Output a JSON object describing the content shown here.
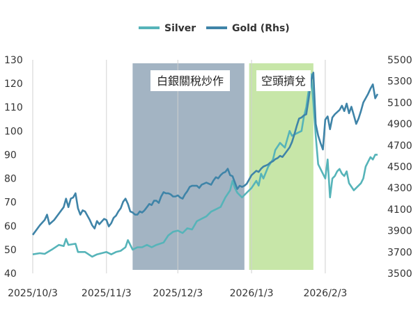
{
  "chart_data": {
    "type": "line",
    "title": "",
    "legend": {
      "position": "top-center",
      "entries": [
        {
          "name": "Silver",
          "color": "#56b4b9",
          "axis": "left"
        },
        {
          "name": "Gold (Rhs)",
          "color": "#3f84a8",
          "axis": "right"
        }
      ]
    },
    "x_ticks": [
      "2025/10/3",
      "2025/11/3",
      "2025/12/3",
      "2026/1/3",
      "2026/2/3"
    ],
    "x_tick_days": [
      0,
      31,
      61,
      92,
      123
    ],
    "x_range_days": [
      0,
      145
    ],
    "y_left": {
      "min": 40,
      "max": 130,
      "ticks": [
        40,
        50,
        60,
        70,
        80,
        90,
        100,
        110,
        120,
        130
      ]
    },
    "y_right": {
      "min": 3500,
      "max": 5500,
      "ticks": [
        3500,
        3700,
        3900,
        4100,
        4300,
        4500,
        4700,
        4900,
        5100,
        5300,
        5500
      ]
    },
    "regions": [
      {
        "label": "白銀關稅炒作",
        "from_day": 42,
        "to_day": 89,
        "color": "#a3b4c3"
      },
      {
        "label": "空頭擠兌",
        "from_day": 91,
        "to_day": 118,
        "color": "#c7e6a8"
      }
    ],
    "series": [
      {
        "name": "Silver",
        "axis": "left",
        "color": "#56b4b9",
        "points": [
          [
            0,
            48
          ],
          [
            3,
            48.5
          ],
          [
            5,
            48.2
          ],
          [
            8,
            50
          ],
          [
            11,
            52
          ],
          [
            13,
            51.5
          ],
          [
            14,
            54.5
          ],
          [
            15,
            52
          ],
          [
            18,
            52.5
          ],
          [
            19,
            49
          ],
          [
            22,
            49
          ],
          [
            25,
            47
          ],
          [
            27,
            48
          ],
          [
            31,
            49
          ],
          [
            33,
            48
          ],
          [
            35,
            49
          ],
          [
            37,
            49.5
          ],
          [
            39,
            51
          ],
          [
            40,
            54
          ],
          [
            41,
            52
          ],
          [
            42,
            50
          ],
          [
            44,
            51
          ],
          [
            46,
            51
          ],
          [
            48,
            52
          ],
          [
            50,
            51
          ],
          [
            52,
            52
          ],
          [
            55,
            53
          ],
          [
            57,
            56
          ],
          [
            59,
            57.5
          ],
          [
            61,
            58
          ],
          [
            63,
            57
          ],
          [
            65,
            59
          ],
          [
            67,
            58.5
          ],
          [
            69,
            62
          ],
          [
            71,
            63
          ],
          [
            73,
            64
          ],
          [
            75,
            66
          ],
          [
            77,
            67
          ],
          [
            79,
            68
          ],
          [
            81,
            72
          ],
          [
            83,
            75
          ],
          [
            84,
            79
          ],
          [
            85,
            76
          ],
          [
            86,
            74
          ],
          [
            87,
            73
          ],
          [
            88,
            72
          ],
          [
            90,
            74
          ],
          [
            92,
            76
          ],
          [
            94,
            79
          ],
          [
            95,
            77
          ],
          [
            96,
            82
          ],
          [
            97,
            80
          ],
          [
            99,
            85
          ],
          [
            101,
            88
          ],
          [
            102,
            92
          ],
          [
            104,
            95
          ],
          [
            105,
            94
          ],
          [
            106,
            93
          ],
          [
            108,
            100
          ],
          [
            109,
            98
          ],
          [
            111,
            99
          ],
          [
            113,
            100
          ],
          [
            114,
            106
          ],
          [
            115,
            110
          ],
          [
            116,
            117
          ],
          [
            117,
            124
          ],
          [
            118,
            112
          ],
          [
            119,
            98
          ],
          [
            120,
            86
          ],
          [
            121,
            84
          ],
          [
            123,
            80
          ],
          [
            124,
            88
          ],
          [
            125,
            72
          ],
          [
            126,
            80
          ],
          [
            127,
            81
          ],
          [
            128,
            83
          ],
          [
            129,
            84
          ],
          [
            130,
            82
          ],
          [
            131,
            81
          ],
          [
            132,
            83
          ],
          [
            133,
            78
          ],
          [
            135,
            75
          ],
          [
            136,
            76
          ],
          [
            137,
            77
          ],
          [
            138,
            78
          ],
          [
            139,
            80
          ],
          [
            140,
            85
          ],
          [
            141,
            87
          ],
          [
            142,
            89
          ],
          [
            143,
            88
          ],
          [
            144,
            90
          ],
          [
            145,
            90
          ]
        ]
      },
      {
        "name": "Gold (Rhs)",
        "axis": "right",
        "color": "#3f84a8",
        "points": [
          [
            0,
            3860
          ],
          [
            3,
            3950
          ],
          [
            5,
            4000
          ],
          [
            6,
            4050
          ],
          [
            7,
            3960
          ],
          [
            9,
            4000
          ],
          [
            11,
            4060
          ],
          [
            13,
            4120
          ],
          [
            14,
            4200
          ],
          [
            15,
            4120
          ],
          [
            16,
            4200
          ],
          [
            17,
            4210
          ],
          [
            18,
            4250
          ],
          [
            19,
            4110
          ],
          [
            20,
            4050
          ],
          [
            21,
            4090
          ],
          [
            22,
            4080
          ],
          [
            24,
            4000
          ],
          [
            25,
            3950
          ],
          [
            26,
            3920
          ],
          [
            27,
            3990
          ],
          [
            28,
            3960
          ],
          [
            30,
            4010
          ],
          [
            31,
            4000
          ],
          [
            32,
            3940
          ],
          [
            33,
            3970
          ],
          [
            34,
            4020
          ],
          [
            35,
            4040
          ],
          [
            36,
            4080
          ],
          [
            37,
            4110
          ],
          [
            38,
            4170
          ],
          [
            39,
            4200
          ],
          [
            40,
            4150
          ],
          [
            41,
            4080
          ],
          [
            42,
            4070
          ],
          [
            43,
            4050
          ],
          [
            44,
            4050
          ],
          [
            45,
            4080
          ],
          [
            46,
            4070
          ],
          [
            47,
            4090
          ],
          [
            48,
            4120
          ],
          [
            49,
            4150
          ],
          [
            50,
            4140
          ],
          [
            51,
            4180
          ],
          [
            52,
            4180
          ],
          [
            53,
            4160
          ],
          [
            54,
            4220
          ],
          [
            55,
            4260
          ],
          [
            56,
            4250
          ],
          [
            57,
            4250
          ],
          [
            58,
            4240
          ],
          [
            59,
            4220
          ],
          [
            60,
            4220
          ],
          [
            61,
            4230
          ],
          [
            62,
            4210
          ],
          [
            63,
            4200
          ],
          [
            64,
            4240
          ],
          [
            65,
            4270
          ],
          [
            66,
            4310
          ],
          [
            67,
            4320
          ],
          [
            68,
            4320
          ],
          [
            69,
            4320
          ],
          [
            70,
            4300
          ],
          [
            71,
            4330
          ],
          [
            72,
            4340
          ],
          [
            73,
            4350
          ],
          [
            74,
            4340
          ],
          [
            75,
            4330
          ],
          [
            76,
            4370
          ],
          [
            77,
            4400
          ],
          [
            78,
            4390
          ],
          [
            79,
            4420
          ],
          [
            80,
            4440
          ],
          [
            81,
            4450
          ],
          [
            82,
            4480
          ],
          [
            83,
            4420
          ],
          [
            84,
            4410
          ],
          [
            85,
            4350
          ],
          [
            86,
            4290
          ],
          [
            87,
            4320
          ],
          [
            88,
            4310
          ],
          [
            89,
            4320
          ],
          [
            90,
            4340
          ],
          [
            91,
            4380
          ],
          [
            92,
            4420
          ],
          [
            93,
            4440
          ],
          [
            94,
            4460
          ],
          [
            95,
            4450
          ],
          [
            96,
            4480
          ],
          [
            97,
            4500
          ],
          [
            98,
            4510
          ],
          [
            99,
            4520
          ],
          [
            100,
            4540
          ],
          [
            101,
            4550
          ],
          [
            102,
            4570
          ],
          [
            103,
            4580
          ],
          [
            104,
            4600
          ],
          [
            105,
            4590
          ],
          [
            106,
            4620
          ],
          [
            107,
            4650
          ],
          [
            108,
            4680
          ],
          [
            109,
            4730
          ],
          [
            110,
            4800
          ],
          [
            111,
            4880
          ],
          [
            112,
            4950
          ],
          [
            113,
            4960
          ],
          [
            114,
            4980
          ],
          [
            115,
            4990
          ],
          [
            116,
            5130
          ],
          [
            117,
            5300
          ],
          [
            118,
            5380
          ],
          [
            119,
            4900
          ],
          [
            120,
            4790
          ],
          [
            121,
            4720
          ],
          [
            122,
            4660
          ],
          [
            123,
            4940
          ],
          [
            124,
            4970
          ],
          [
            125,
            4850
          ],
          [
            126,
            4960
          ],
          [
            127,
            4990
          ],
          [
            128,
            5010
          ],
          [
            129,
            5030
          ],
          [
            130,
            5070
          ],
          [
            131,
            5020
          ],
          [
            132,
            5090
          ],
          [
            133,
            5000
          ],
          [
            134,
            5060
          ],
          [
            135,
            4980
          ],
          [
            136,
            4900
          ],
          [
            137,
            4950
          ],
          [
            138,
            5020
          ],
          [
            139,
            5100
          ],
          [
            140,
            5140
          ],
          [
            141,
            5180
          ],
          [
            142,
            5230
          ],
          [
            143,
            5270
          ],
          [
            144,
            5140
          ],
          [
            145,
            5180
          ]
        ]
      }
    ]
  }
}
